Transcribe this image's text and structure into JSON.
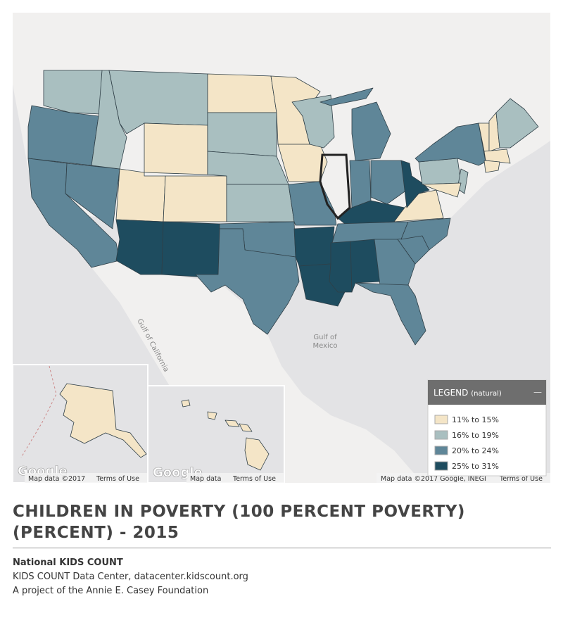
{
  "map": {
    "gulf_of_california": "Gulf of California",
    "gulf_of_mexico": [
      "Gulf of",
      "Mexico"
    ],
    "logos": [
      "Google",
      "Google"
    ],
    "attribution": {
      "alaska": [
        "Map data ©2017",
        "Terms of Use"
      ],
      "hawaii": [
        "Map data",
        "Terms of Use"
      ],
      "main": [
        "Map data ©2017 Google, INEGI",
        "Terms of Use"
      ]
    }
  },
  "legend": {
    "title": "LEGEND",
    "subtitle": "(natural)",
    "collapse": "—",
    "items": [
      {
        "label": "11% to 15%",
        "color": "#f4e5c7"
      },
      {
        "label": "16% to 19%",
        "color": "#a9bfc0"
      },
      {
        "label": "20% to 24%",
        "color": "#5f8698"
      },
      {
        "label": "25% to 31%",
        "color": "#1e4c5f"
      }
    ]
  },
  "title": "CHILDREN IN POVERTY (100 PERCENT POVERTY) (PERCENT) - 2015",
  "source": {
    "org": "National KIDS COUNT",
    "site": "KIDS COUNT Data Center, datacenter.kidscount.org",
    "project": "A project of the Annie E. Casey Foundation"
  }
}
